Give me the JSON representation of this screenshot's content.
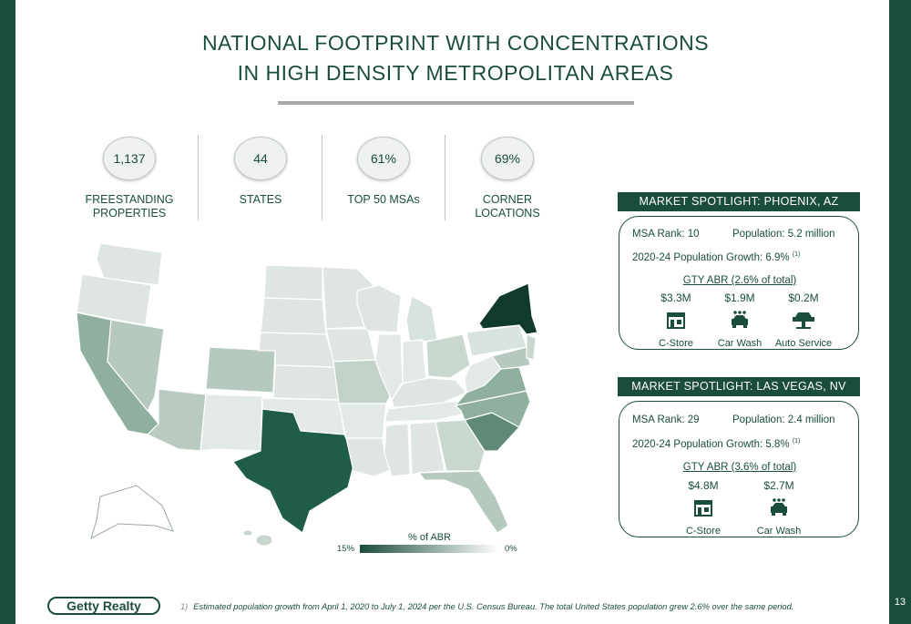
{
  "title": {
    "line1": "NATIONAL FOOTPRINT WITH CONCENTRATIONS",
    "line2": "IN HIGH DENSITY METROPOLITAN AREAS"
  },
  "stats": [
    {
      "value": "1,137",
      "label": "FREESTANDING PROPERTIES"
    },
    {
      "value": "44",
      "label": "STATES"
    },
    {
      "value": "61%",
      "label": "TOP 50 MSAs"
    },
    {
      "value": "69%",
      "label": "CORNER LOCATIONS"
    }
  ],
  "phoenix": {
    "header": "MARKET SPOTLIGHT: PHOENIX, AZ",
    "msa_rank": "MSA Rank: 10",
    "population": "Population: 5.2 million",
    "growth": "2020-24 Population Growth: 6.9%",
    "growth_note": "(1)",
    "abr_title": "GTY ABR (2.6% of total)",
    "items": [
      {
        "value": "$3.3M",
        "label": "C-Store",
        "icon": "store-icon"
      },
      {
        "value": "$1.9M",
        "label": "Car Wash",
        "icon": "car-wash-icon"
      },
      {
        "value": "$0.2M",
        "label": "Auto Service",
        "icon": "auto-service-icon"
      }
    ]
  },
  "lasvegas": {
    "header": "MARKET SPOTLIGHT: LAS VEGAS, NV",
    "msa_rank": "MSA Rank: 29",
    "population": "Population: 2.4 million",
    "growth": "2020-24 Population Growth: 5.8%",
    "growth_note": "(1)",
    "abr_title": "GTY ABR (3.6% of total)",
    "items": [
      {
        "value": "$4.8M",
        "label": "C-Store",
        "icon": "store-icon"
      },
      {
        "value": "$2.7M",
        "label": "Car Wash",
        "icon": "car-wash-icon"
      }
    ]
  },
  "legend": {
    "title": "% of ABR",
    "high": "15%",
    "low": "0%"
  },
  "colors": {
    "brand_dark": "#1b4d3e",
    "gradient_high": "#1b4d3e",
    "gradient_low": "#ffffff"
  },
  "logo": "Getty Realty",
  "footnote": {
    "number": "1)",
    "text": "Estimated population growth from April 1, 2020 to July 1, 2024 per the U.S. Census Bureau. The total United States population grew 2.6% over the same period."
  },
  "page_number": "13"
}
